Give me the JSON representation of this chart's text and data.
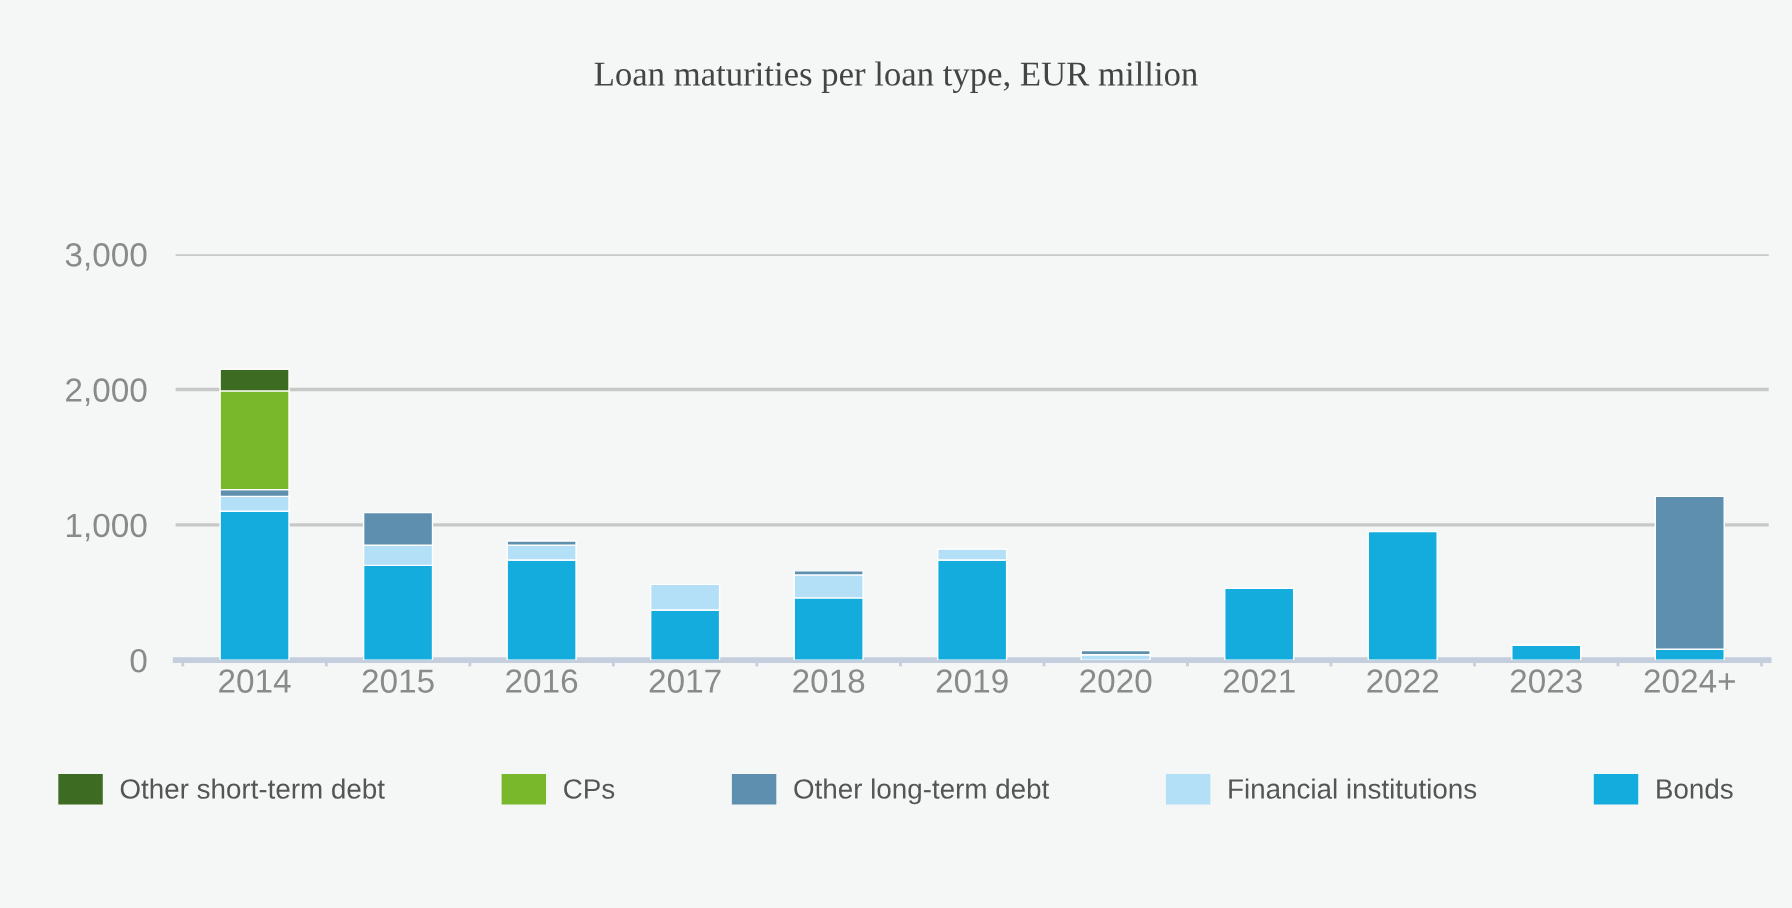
{
  "chart_data": {
    "type": "bar",
    "title": "Loan maturities per loan type, EUR million",
    "stacked": true,
    "categories": [
      "2014",
      "2015",
      "2016",
      "2017",
      "2018",
      "2019",
      "2020",
      "2021",
      "2022",
      "2023",
      "2024+"
    ],
    "series": [
      {
        "name": "Bonds",
        "color": "#14acdc",
        "values": [
          1100,
          700,
          740,
          370,
          460,
          740,
          null,
          530,
          950,
          110,
          80
        ]
      },
      {
        "name": "Financial institutions",
        "color": "#b3dff7",
        "values": [
          110,
          150,
          110,
          190,
          170,
          80,
          40,
          null,
          null,
          null,
          null
        ]
      },
      {
        "name": "Other long-term debt",
        "color": "#5e8fae",
        "values": [
          50,
          240,
          30,
          null,
          30,
          null,
          30,
          null,
          null,
          null,
          1130
        ]
      },
      {
        "name": "CPs",
        "color": "#78b82a",
        "values": [
          730,
          null,
          null,
          null,
          null,
          null,
          null,
          null,
          null,
          null,
          null
        ]
      },
      {
        "name": "Other short-term debt",
        "color": "#3d6b22",
        "values": [
          160,
          null,
          null,
          null,
          null,
          null,
          null,
          null,
          null,
          null,
          null
        ]
      }
    ],
    "ylim": [
      0,
      3000
    ],
    "yticks": [
      {
        "value": 0,
        "label": "0"
      },
      {
        "value": 1000,
        "label": "1,000"
      },
      {
        "value": 2000,
        "label": "2,000"
      },
      {
        "value": 3000,
        "label": "3,000"
      }
    ],
    "grid": "y",
    "legend": "bottom"
  }
}
